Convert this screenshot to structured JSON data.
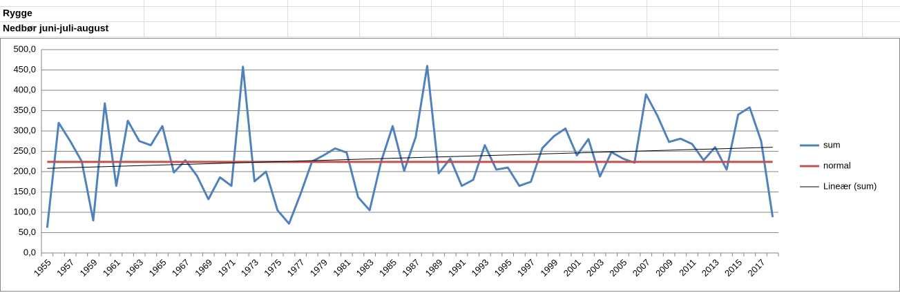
{
  "sheet": {
    "cells": [
      "Rygge",
      "Nedbør juni-juli-august"
    ]
  },
  "chart_data": {
    "type": "line",
    "categories": [
      "1955",
      null,
      "1957",
      null,
      "1959",
      null,
      "1961",
      null,
      "1963",
      null,
      "1965",
      null,
      "1967",
      null,
      "1969",
      null,
      "1971",
      null,
      "1973",
      null,
      "1975",
      null,
      "1977",
      null,
      "1979",
      null,
      "1981",
      null,
      "1983",
      null,
      "1985",
      null,
      "1987",
      null,
      "1989",
      null,
      "1991",
      null,
      "1993",
      null,
      "1995",
      null,
      "1997",
      null,
      "1999",
      null,
      "2001",
      null,
      "2003",
      null,
      "2005",
      null,
      "2007",
      null,
      "2009",
      null,
      "2011",
      null,
      "2013",
      null,
      "2015",
      null,
      "2017",
      null
    ],
    "series": [
      {
        "name": "sum",
        "color": "#4f81bd",
        "width": 3,
        "values": [
          62,
          320,
          275,
          225,
          80,
          368,
          165,
          325,
          275,
          265,
          312,
          198,
          228,
          190,
          132,
          186,
          165,
          458,
          176,
          200,
          105,
          72,
          145,
          225,
          240,
          257,
          247,
          137,
          105,
          225,
          312,
          202,
          285,
          460,
          196,
          232,
          165,
          180,
          265,
          205,
          210,
          165,
          175,
          258,
          287,
          306,
          240,
          280,
          188,
          248,
          232,
          222,
          390,
          337,
          273,
          281,
          268,
          228,
          260,
          205,
          340,
          358,
          275,
          88
        ]
      },
      {
        "name": "normal",
        "color": "#c0504d",
        "width": 3,
        "values": [
          224,
          224,
          224,
          224,
          224,
          224,
          224,
          224,
          224,
          224,
          224,
          224,
          224,
          224,
          224,
          224,
          224,
          224,
          224,
          224,
          224,
          224,
          224,
          224,
          224,
          224,
          224,
          224,
          224,
          224,
          224,
          224,
          224,
          224,
          224,
          224,
          224,
          224,
          224,
          224,
          224,
          224,
          224,
          224,
          224,
          224,
          224,
          224,
          224,
          224,
          224,
          224,
          224,
          224,
          224,
          224,
          224,
          224,
          224,
          224,
          224,
          224,
          224,
          224
        ]
      }
    ],
    "trendline": {
      "name": "Lineær (sum)",
      "color": "#000000",
      "kind": "linear"
    },
    "ylim": [
      0,
      500
    ],
    "yticks": [
      {
        "value": 0,
        "label": "0,0"
      },
      {
        "value": 50,
        "label": "50,0"
      },
      {
        "value": 100,
        "label": "100,0"
      },
      {
        "value": 150,
        "label": "150,0"
      },
      {
        "value": 200,
        "label": "200,0"
      },
      {
        "value": 250,
        "label": "250,0"
      },
      {
        "value": 300,
        "label": "300,0"
      },
      {
        "value": 350,
        "label": "350,0"
      },
      {
        "value": 400,
        "label": "400,0"
      },
      {
        "value": 450,
        "label": "450,0"
      },
      {
        "value": 500,
        "label": "500,0"
      }
    ],
    "grid": true
  }
}
